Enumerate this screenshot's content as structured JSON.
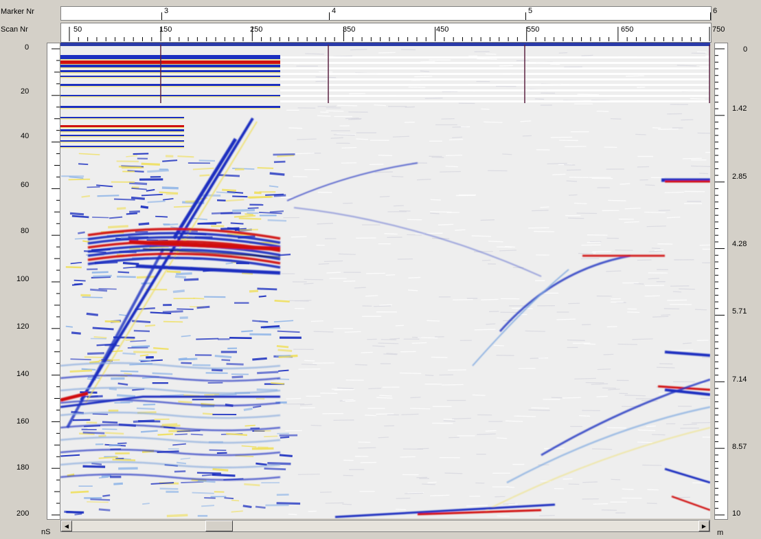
{
  "labels": {
    "marker_row": "Marker Nr",
    "scan_row": "Scan Nr",
    "time_unit": "nS",
    "depth_unit": "m"
  },
  "markers": [
    "3",
    "4",
    "5",
    "6"
  ],
  "scan_ticks": [
    "50",
    "150",
    "250",
    "350",
    "450",
    "550",
    "650",
    "750"
  ],
  "time_ticks": [
    "0",
    "20",
    "40",
    "60",
    "80",
    "100",
    "120",
    "140",
    "160",
    "180",
    "200"
  ],
  "depth_ticks": [
    "0",
    "1.42",
    "2.85",
    "4.28",
    "5.71",
    "7.14",
    "8.57",
    "10"
  ],
  "colors": {
    "blue": "#1b2fc0",
    "red": "#d01010",
    "yellow": "#f0e060",
    "background": "#eeeeee",
    "marker_line": "#5a2040"
  },
  "scrollbar": {
    "left_arrow_icon": "arrow-left-icon",
    "right_arrow_icon": "arrow-right-icon"
  }
}
